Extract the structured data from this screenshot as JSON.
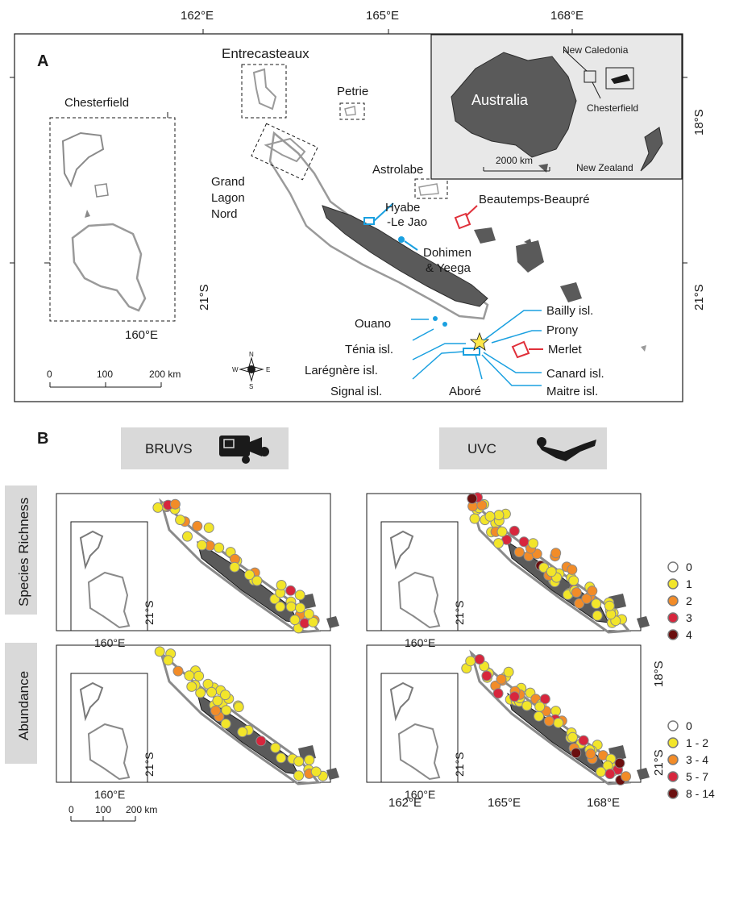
{
  "panel_a": {
    "letter": "A",
    "top_ticks": [
      "162°E",
      "165°E",
      "168°E"
    ],
    "right_ticks": [
      "18°S",
      "21°S"
    ],
    "inset_left": {
      "title": "Chesterfield",
      "lon_label": "160°E",
      "lat_label": "21°S",
      "scale_labels": [
        "0",
        "100",
        "200 km"
      ]
    },
    "inset_australia": {
      "country_label": "Australia",
      "labels": [
        "New Caledonia",
        "Chesterfield",
        "New Zealand"
      ],
      "scale_label": "2000 km"
    },
    "boxed_sites": [
      "Entrecasteaux",
      "Petrie",
      "Astrolabe"
    ],
    "grand_lagon": [
      "Grand",
      "Lagon",
      "Nord"
    ],
    "blue_sites_upper": [
      "Hyabe",
      "-Le Jao",
      "Dohimen",
      "& Yeega"
    ],
    "red_sites": [
      "Beautemps-Beaupré",
      "Merlet"
    ],
    "left_sites": [
      "Ouano",
      "Ténia isl.",
      "Larégnère isl.",
      "Signal isl."
    ],
    "right_sites": [
      "Bailly isl.",
      "Prony",
      "Canard isl.",
      "Maitre isl."
    ],
    "bottom_site": "Aboré",
    "compass": [
      "N",
      "S",
      "W",
      "E"
    ]
  },
  "panel_b": {
    "letter": "B",
    "methods": [
      "BRUVS",
      "UVC"
    ],
    "rows": [
      "Species Richness",
      "Abundance"
    ],
    "inset_lon": "160°E",
    "inset_lat": "21°S",
    "scale_labels": [
      "0",
      "100",
      "200 km"
    ],
    "bottom_ticks": [
      "162°E",
      "165°E",
      "168°E"
    ],
    "right_ticks": [
      "18°S",
      "21°S"
    ]
  },
  "legends": {
    "richness": {
      "labels": [
        "0",
        "1",
        "2",
        "3",
        "4"
      ],
      "colors": [
        "#ffffff",
        "#f2e52a",
        "#f28c28",
        "#d7263d",
        "#6b0f0f"
      ]
    },
    "abundance": {
      "labels": [
        "0",
        "1 - 2",
        "3 - 4",
        "5 - 7",
        "8 - 14"
      ],
      "colors": [
        "#ffffff",
        "#f2e52a",
        "#f28c28",
        "#d7263d",
        "#6b0f0f"
      ]
    }
  },
  "colors": {
    "land": "#5a5a5a",
    "reef": "#a8a8a8",
    "blue_site": "#1aa0e0",
    "red_site": "#e0303a",
    "label_bg": "#d9d9d9"
  }
}
